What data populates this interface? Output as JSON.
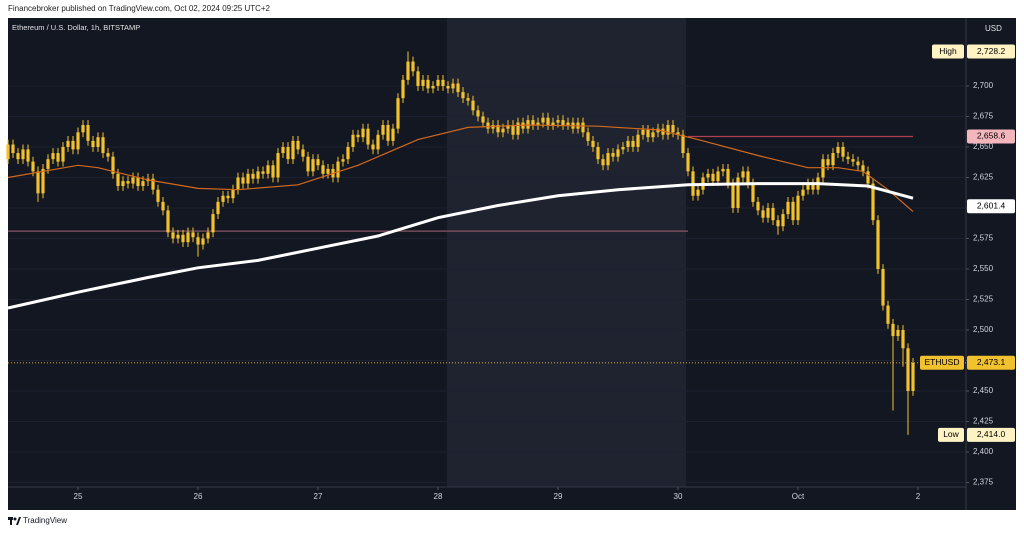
{
  "header": "Financebroker published on TradingView.com, Oct 02, 2024 09:25 UTC+2",
  "footer": "TradingView",
  "chart_data": {
    "type": "candlestick",
    "title": "Ethereum / U.S. Dollar, 1h, BITSTAMP",
    "y_axis_label": "USD",
    "color": "#f2c12e",
    "xlim": [
      -14,
      177.6
    ],
    "ylim": [
      2371.3,
      2755.7
    ],
    "xticks": [
      {
        "value": 0,
        "label": "25"
      },
      {
        "value": 24,
        "label": "26"
      },
      {
        "value": 48,
        "label": "27"
      },
      {
        "value": 72,
        "label": "28"
      },
      {
        "value": 96,
        "label": "29"
      },
      {
        "value": 120,
        "label": "30"
      },
      {
        "value": 144,
        "label": "Oct"
      },
      {
        "value": 168,
        "label": "2"
      }
    ],
    "yticks": [
      {
        "value": 2375,
        "label": "2,375"
      },
      {
        "value": 2400,
        "label": "2,400"
      },
      {
        "value": 2425,
        "label": "2,425"
      },
      {
        "value": 2450,
        "label": "2,450"
      },
      {
        "value": 2475,
        "label": "2,475"
      },
      {
        "value": 2500,
        "label": "2,500"
      },
      {
        "value": 2525,
        "label": "2,525"
      },
      {
        "value": 2550,
        "label": "2,550"
      },
      {
        "value": 2575,
        "label": "2,575"
      },
      {
        "value": 2600,
        "label": "2,600"
      },
      {
        "value": 2625,
        "label": "2,625"
      },
      {
        "value": 2650,
        "label": "2,650"
      },
      {
        "value": 2675,
        "label": "2,675"
      },
      {
        "value": 2700,
        "label": "2,700"
      }
    ],
    "x": [
      -14,
      -13,
      -12,
      -11,
      -10,
      -9,
      -8,
      -7,
      -6,
      -5,
      -4,
      -3,
      -2,
      -1,
      0,
      1,
      2,
      3,
      4,
      5,
      6,
      7,
      8,
      9,
      10,
      11,
      12,
      13,
      14,
      15,
      16,
      17,
      18,
      19,
      20,
      21,
      22,
      23,
      24,
      25,
      26,
      27,
      28,
      29,
      30,
      31,
      32,
      33,
      34,
      35,
      36,
      37,
      38,
      39,
      40,
      41,
      42,
      43,
      44,
      45,
      46,
      47,
      48,
      49,
      50,
      51,
      52,
      53,
      54,
      55,
      56,
      57,
      58,
      59,
      60,
      61,
      62,
      63,
      64,
      65,
      66,
      67,
      68,
      69,
      70,
      71,
      72,
      73,
      74,
      75,
      76,
      77,
      78,
      79,
      80,
      81,
      82,
      83,
      84,
      85,
      86,
      87,
      88,
      89,
      90,
      91,
      92,
      93,
      94,
      95,
      96,
      97,
      98,
      99,
      100,
      101,
      102,
      103,
      104,
      105,
      106,
      107,
      108,
      109,
      110,
      111,
      112,
      113,
      114,
      115,
      116,
      117,
      118,
      119,
      120,
      121,
      122,
      123,
      124,
      125,
      126,
      127,
      128,
      129,
      130,
      131,
      132,
      133,
      134,
      135,
      136,
      137,
      138,
      139,
      140,
      141,
      142,
      143,
      144,
      145,
      146,
      147,
      148,
      149,
      150,
      151,
      152,
      153,
      154,
      155,
      156,
      157,
      158,
      159,
      160,
      161,
      162,
      163,
      164,
      165,
      166,
      167
    ],
    "open": [
      2640,
      2652,
      2645,
      2640,
      2648,
      2638,
      2630,
      2612,
      2632,
      2640,
      2645,
      2638,
      2650,
      2655,
      2648,
      2662,
      2668,
      2655,
      2650,
      2658,
      2645,
      2642,
      2628,
      2618,
      2622,
      2620,
      2625,
      2618,
      2622,
      2624,
      2615,
      2605,
      2598,
      2580,
      2575,
      2578,
      2572,
      2580,
      2576,
      2570,
      2575,
      2580,
      2595,
      2605,
      2610,
      2608,
      2615,
      2625,
      2620,
      2628,
      2624,
      2630,
      2628,
      2635,
      2625,
      2645,
      2650,
      2640,
      2655,
      2648,
      2642,
      2630,
      2640,
      2635,
      2628,
      2632,
      2625,
      2638,
      2640,
      2650,
      2660,
      2658,
      2665,
      2652,
      2648,
      2660,
      2668,
      2655,
      2665,
      2690,
      2705,
      2720,
      2712,
      2700,
      2705,
      2698,
      2700,
      2705,
      2700,
      2698,
      2702,
      2695,
      2690,
      2688,
      2680,
      2675,
      2670,
      2665,
      2668,
      2662,
      2665,
      2668,
      2660,
      2670,
      2665,
      2672,
      2668,
      2670,
      2674,
      2668,
      2670,
      2672,
      2668,
      2670,
      2665,
      2670,
      2662,
      2655,
      2650,
      2640,
      2635,
      2645,
      2642,
      2648,
      2650,
      2655,
      2650,
      2660,
      2664,
      2658,
      2662,
      2665,
      2660,
      2668,
      2662,
      2660,
      2645,
      2630,
      2610,
      2615,
      2625,
      2628,
      2622,
      2630,
      2632,
      2620,
      2600,
      2625,
      2630,
      2620,
      2605,
      2598,
      2592,
      2600,
      2590,
      2585,
      2595,
      2605,
      2590,
      2610,
      2615,
      2620,
      2615,
      2625,
      2640,
      2635,
      2645,
      2650,
      2642,
      2640,
      2638,
      2635,
      2630,
      2620,
      2590,
      2550,
      2520,
      2505,
      2495,
      2500,
      2485,
      2450
    ],
    "high": [
      2656,
      2656,
      2649,
      2652,
      2652,
      2642,
      2634,
      2636,
      2644,
      2649,
      2649,
      2654,
      2659,
      2659,
      2666,
      2672,
      2672,
      2659,
      2662,
      2662,
      2649,
      2646,
      2632,
      2626,
      2626,
      2629,
      2629,
      2626,
      2628,
      2628,
      2619,
      2609,
      2602,
      2584,
      2582,
      2582,
      2584,
      2584,
      2580,
      2579,
      2584,
      2599,
      2609,
      2614,
      2614,
      2619,
      2629,
      2629,
      2632,
      2632,
      2634,
      2634,
      2639,
      2639,
      2649,
      2654,
      2654,
      2659,
      2659,
      2652,
      2646,
      2644,
      2644,
      2639,
      2636,
      2636,
      2642,
      2644,
      2654,
      2664,
      2664,
      2669,
      2669,
      2656,
      2664,
      2672,
      2672,
      2669,
      2694,
      2709,
      2728.2,
      2724,
      2716,
      2709,
      2709,
      2704,
      2709,
      2709,
      2704,
      2706,
      2706,
      2699,
      2694,
      2692,
      2684,
      2679,
      2674,
      2672,
      2672,
      2669,
      2672,
      2672,
      2674,
      2674,
      2676,
      2676,
      2674,
      2678,
      2678,
      2674,
      2676,
      2676,
      2674,
      2674,
      2674,
      2674,
      2666,
      2659,
      2654,
      2644,
      2649,
      2649,
      2652,
      2654,
      2659,
      2659,
      2664,
      2668,
      2668,
      2666,
      2669,
      2669,
      2672,
      2672,
      2666,
      2664,
      2649,
      2634,
      2619,
      2629,
      2632,
      2632,
      2634,
      2636,
      2636,
      2624,
      2629,
      2634,
      2634,
      2624,
      2609,
      2602,
      2604,
      2604,
      2594,
      2599,
      2609,
      2609,
      2614,
      2619,
      2624,
      2624,
      2629,
      2644,
      2644,
      2649,
      2654,
      2654,
      2646,
      2644,
      2642,
      2639,
      2634,
      2624,
      2594,
      2554,
      2524,
      2509,
      2504,
      2504,
      2489,
      2477
    ],
    "low": [
      2636,
      2641,
      2636,
      2636,
      2634,
      2626,
      2605,
      2608,
      2628,
      2636,
      2634,
      2634,
      2646,
      2644,
      2644,
      2658,
      2651,
      2646,
      2646,
      2641,
      2638,
      2624,
      2614,
      2614,
      2616,
      2616,
      2614,
      2614,
      2618,
      2611,
      2601,
      2594,
      2576,
      2571,
      2571,
      2568,
      2568,
      2572,
      2560,
      2566,
      2571,
      2576,
      2591,
      2601,
      2604,
      2604,
      2611,
      2616,
      2616,
      2620,
      2620,
      2624,
      2624,
      2621,
      2621,
      2641,
      2636,
      2636,
      2644,
      2638,
      2626,
      2626,
      2631,
      2624,
      2624,
      2621,
      2621,
      2634,
      2636,
      2646,
      2654,
      2654,
      2648,
      2644,
      2644,
      2656,
      2651,
      2651,
      2661,
      2686,
      2701,
      2708,
      2696,
      2696,
      2694,
      2694,
      2696,
      2696,
      2694,
      2694,
      2691,
      2686,
      2684,
      2676,
      2671,
      2666,
      2661,
      2661,
      2658,
      2658,
      2661,
      2656,
      2656,
      2661,
      2661,
      2664,
      2664,
      2666,
      2664,
      2664,
      2666,
      2664,
      2664,
      2661,
      2661,
      2658,
      2651,
      2646,
      2636,
      2631,
      2631,
      2638,
      2638,
      2644,
      2646,
      2646,
      2646,
      2656,
      2654,
      2654,
      2658,
      2656,
      2656,
      2658,
      2656,
      2641,
      2626,
      2606,
      2606,
      2611,
      2621,
      2618,
      2618,
      2626,
      2616,
      2596,
      2596,
      2621,
      2616,
      2601,
      2594,
      2588,
      2588,
      2586,
      2578,
      2581,
      2591,
      2586,
      2586,
      2606,
      2611,
      2611,
      2611,
      2621,
      2631,
      2631,
      2641,
      2638,
      2636,
      2634,
      2631,
      2626,
      2616,
      2586,
      2546,
      2516,
      2501,
      2434,
      2491,
      2470,
      2414.0,
      2446
    ],
    "close": [
      2652,
      2645,
      2640,
      2648,
      2638,
      2630,
      2612,
      2632,
      2640,
      2645,
      2638,
      2650,
      2655,
      2648,
      2662,
      2668,
      2655,
      2650,
      2658,
      2645,
      2642,
      2628,
      2618,
      2622,
      2620,
      2625,
      2618,
      2622,
      2624,
      2615,
      2605,
      2598,
      2580,
      2575,
      2578,
      2572,
      2580,
      2576,
      2570,
      2575,
      2580,
      2595,
      2605,
      2610,
      2608,
      2615,
      2625,
      2620,
      2628,
      2624,
      2630,
      2628,
      2635,
      2625,
      2645,
      2650,
      2640,
      2655,
      2648,
      2642,
      2630,
      2640,
      2635,
      2628,
      2632,
      2625,
      2638,
      2640,
      2650,
      2660,
      2658,
      2665,
      2652,
      2648,
      2660,
      2668,
      2655,
      2665,
      2690,
      2705,
      2720,
      2712,
      2700,
      2705,
      2698,
      2700,
      2705,
      2700,
      2698,
      2702,
      2695,
      2690,
      2688,
      2680,
      2675,
      2670,
      2665,
      2668,
      2662,
      2665,
      2668,
      2660,
      2670,
      2665,
      2672,
      2668,
      2670,
      2674,
      2668,
      2670,
      2672,
      2668,
      2670,
      2665,
      2670,
      2662,
      2655,
      2650,
      2640,
      2635,
      2645,
      2642,
      2648,
      2650,
      2655,
      2650,
      2660,
      2664,
      2658,
      2662,
      2665,
      2660,
      2668,
      2662,
      2660,
      2645,
      2630,
      2610,
      2615,
      2625,
      2628,
      2622,
      2630,
      2632,
      2620,
      2600,
      2625,
      2630,
      2620,
      2605,
      2598,
      2592,
      2600,
      2590,
      2585,
      2595,
      2605,
      2590,
      2610,
      2615,
      2620,
      2615,
      2625,
      2640,
      2635,
      2645,
      2650,
      2642,
      2640,
      2638,
      2635,
      2630,
      2620,
      2590,
      2550,
      2520,
      2505,
      2495,
      2500,
      2485,
      2450,
      2473.1
    ],
    "overlays": [
      {
        "color": "#d2691e",
        "x": [
          -14,
          0,
          4,
          14,
          24,
          32,
          44,
          56,
          68,
          78,
          90,
          104,
          116,
          124,
          136,
          146,
          152,
          157,
          162,
          167
        ],
        "values": [
          2625,
          2635,
          2633,
          2623,
          2616,
          2615,
          2619,
          2635,
          2656,
          2666,
          2668,
          2667,
          2664,
          2656,
          2643,
          2633,
          2633,
          2630,
          2615,
          2597
        ]
      },
      {
        "color": "#ffffff",
        "x": [
          -14,
          0,
          14,
          24,
          36,
          48,
          60,
          72,
          84,
          96,
          108,
          122,
          136,
          148,
          158,
          167
        ],
        "values": [
          2518,
          2531,
          2543,
          2551,
          2557,
          2567,
          2577,
          2592,
          2602,
          2610,
          2615,
          2619,
          2620,
          2620,
          2618,
          2608
        ]
      }
    ],
    "levels": [
      {
        "value": 2581,
        "from": -14,
        "to": 122,
        "color": "#8a5566",
        "dash": false
      },
      {
        "value": 2658.6,
        "from": 122,
        "to": 167,
        "color": "#b0404f",
        "dash": false
      },
      {
        "value": 2473.1,
        "from": -14,
        "to": 177.6,
        "color": "#c9a030",
        "dash": true
      }
    ],
    "price_labels": [
      {
        "tag": "High",
        "value": 2728.2,
        "label": "2,728.2",
        "color": "#fff3c4",
        "text_color": "#000000"
      },
      {
        "value": 2658.6,
        "label": "2,658.6",
        "color": "#f4b6bd",
        "text_color": "#000000"
      },
      {
        "value": 2601.4,
        "label": "2,601.4",
        "color": "#ffffff",
        "text_color": "#000000"
      },
      {
        "tag": "ETHUSD",
        "value": 2473.1,
        "label": "2,473.1",
        "color": "#f2c12e",
        "text_color": "#000000"
      },
      {
        "tag": "Low",
        "value": 2414.0,
        "label": "2,414.0",
        "color": "#fff3c4",
        "text_color": "#000000"
      }
    ]
  }
}
